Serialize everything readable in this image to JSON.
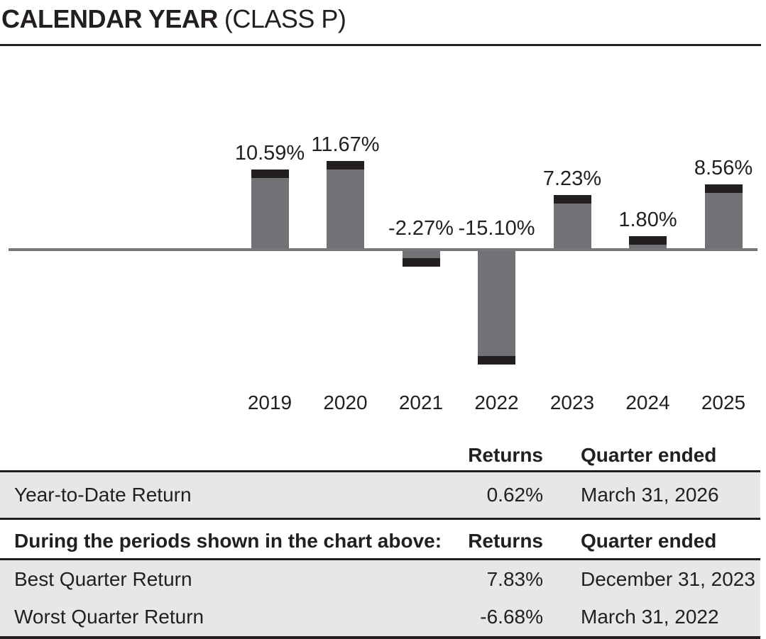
{
  "title": {
    "main": "CALENDAR YEAR",
    "suffix": "(CLASS P)"
  },
  "chart_data": {
    "type": "bar",
    "title": "CALENDAR YEAR (CLASS P)",
    "categories": [
      "2019",
      "2020",
      "2021",
      "2022",
      "2023",
      "2024",
      "2025"
    ],
    "values": [
      10.59,
      11.67,
      -2.27,
      -15.1,
      7.23,
      1.8,
      8.56
    ],
    "labels": [
      "10.59%",
      "11.67%",
      "-2.27%",
      "-15.10%",
      "7.23%",
      "1.80%",
      "8.56%"
    ],
    "xlabel": "",
    "ylabel": "",
    "ylim": [
      -16,
      13
    ],
    "grid": false,
    "legend": false,
    "baseline": 0,
    "value_label_format": "percent",
    "bar_color": "#717275",
    "bar_tip_color": "#231f20",
    "axis_color": "#77787b"
  },
  "table": {
    "ytd_header": {
      "returns": "Returns",
      "quarter": "Quarter ended"
    },
    "ytd_row": {
      "label": "Year-to-Date Return",
      "returns": "0.62%",
      "quarter": "March 31, 2026"
    },
    "period_header": {
      "label": "During the periods shown in the chart above:",
      "returns": "Returns",
      "quarter": "Quarter ended"
    },
    "rows": [
      {
        "label": "Best Quarter Return",
        "returns": "7.83%",
        "quarter": "December 31, 2023"
      },
      {
        "label": "Worst Quarter Return",
        "returns": "-6.68%",
        "quarter": "March 31, 2022"
      }
    ]
  }
}
